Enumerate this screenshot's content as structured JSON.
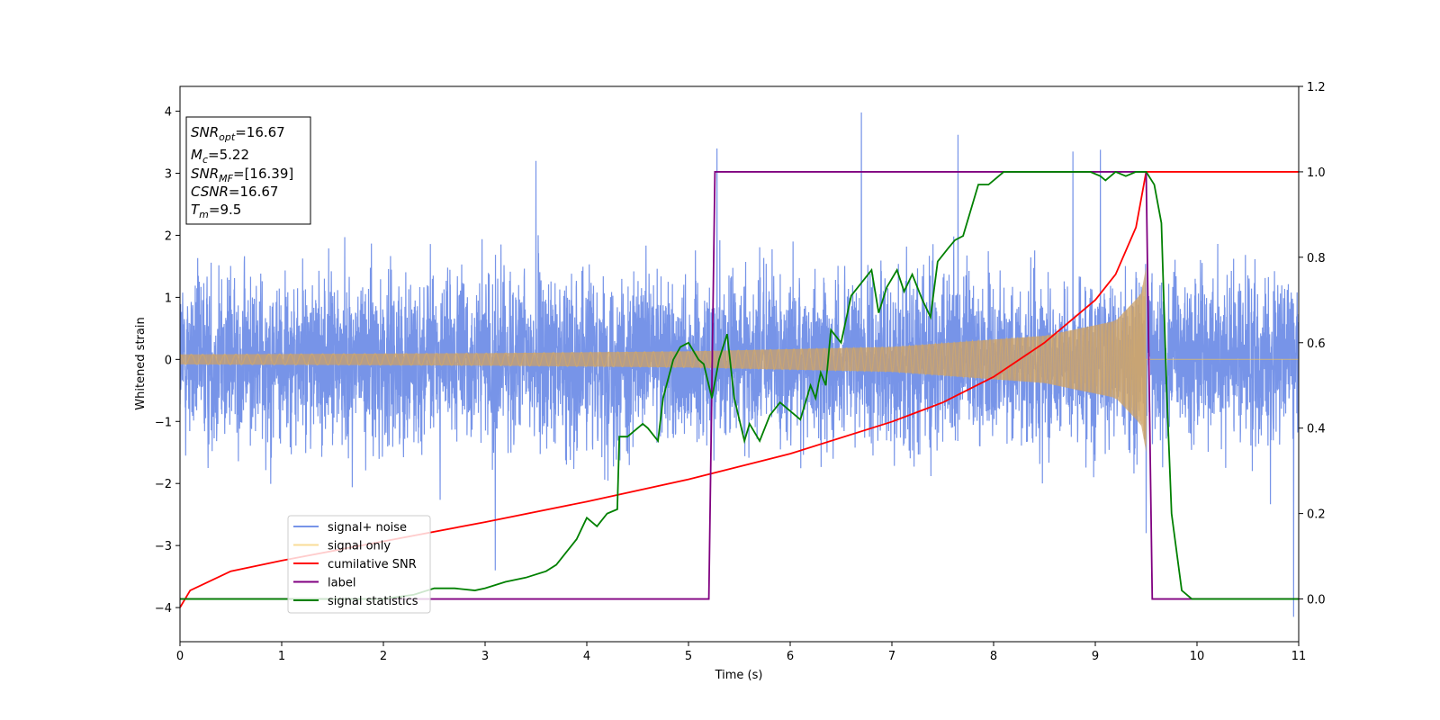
{
  "chart_data": {
    "type": "line",
    "xlabel": "Time (s)",
    "ylabel": "Whitened strain",
    "xlim": [
      0,
      11
    ],
    "ylim": [
      -4.55,
      4.4
    ],
    "y2lim": [
      -0.1,
      1.2
    ],
    "x_ticks": [
      0,
      1,
      2,
      3,
      4,
      5,
      6,
      7,
      8,
      9,
      10,
      11
    ],
    "y_ticks": [
      -4,
      -3,
      -2,
      -1,
      0,
      1,
      2,
      3,
      4
    ],
    "y2_ticks": [
      0.0,
      0.2,
      0.4,
      0.6,
      0.8,
      1.0,
      1.2
    ],
    "y2_tick_labels": [
      "0.0",
      "0.2",
      "0.4",
      "0.6",
      "0.8",
      "1.0",
      "1.2"
    ],
    "grid": false,
    "legend_position": "bottom-left",
    "info_box": {
      "lines": [
        {
          "var": "SNR",
          "sub": "opt",
          "value": "=16.67"
        },
        {
          "var": "M",
          "sub": "c",
          "value": "=5.22"
        },
        {
          "var": "SNR",
          "sub": "MF",
          "value": "=[16.39]"
        },
        {
          "var": "CSNR",
          "sub": "",
          "value": "=16.67"
        },
        {
          "var": "T",
          "sub": "m",
          "value": "=9.5"
        }
      ]
    },
    "series": [
      {
        "name": "signal+ noise",
        "axis": "left",
        "color": "#6b8be6",
        "kind": "noise",
        "noise_amplitude": 2.2,
        "spikes": [
          [
            5.28,
            3.4
          ],
          [
            6.7,
            3.98
          ],
          [
            7.65,
            3.62
          ],
          [
            8.78,
            3.35
          ],
          [
            9.05,
            3.38
          ],
          [
            3.1,
            -3.4
          ],
          [
            10.95,
            -4.15
          ],
          [
            3.5,
            3.2
          ],
          [
            9.5,
            -2.8
          ]
        ]
      },
      {
        "name": "signal only",
        "axis": "left",
        "color": "#f5c451",
        "kind": "chirp",
        "merger_time": 9.5,
        "envelope": [
          [
            0,
            0.08
          ],
          [
            3,
            0.1
          ],
          [
            5,
            0.13
          ],
          [
            7,
            0.2
          ],
          [
            8.5,
            0.38
          ],
          [
            9.2,
            0.62
          ],
          [
            9.45,
            1.05
          ],
          [
            9.5,
            1.5
          ]
        ]
      },
      {
        "name": "cumilative SNR",
        "axis": "right",
        "color": "#ff0000",
        "points": [
          [
            0,
            -0.02
          ],
          [
            0.1,
            0.02
          ],
          [
            0.5,
            0.065
          ],
          [
            1,
            0.09
          ],
          [
            2,
            0.135
          ],
          [
            3,
            0.18
          ],
          [
            4,
            0.228
          ],
          [
            5,
            0.28
          ],
          [
            6,
            0.34
          ],
          [
            7,
            0.415
          ],
          [
            7.5,
            0.46
          ],
          [
            8,
            0.52
          ],
          [
            8.5,
            0.6
          ],
          [
            9,
            0.7
          ],
          [
            9.2,
            0.76
          ],
          [
            9.4,
            0.87
          ],
          [
            9.5,
            1.0
          ],
          [
            11,
            1.0
          ]
        ]
      },
      {
        "name": "label",
        "axis": "right",
        "color": "#800080",
        "points": [
          [
            0,
            0.0
          ],
          [
            5.2,
            0.0
          ],
          [
            5.26,
            1.0
          ],
          [
            9.5,
            1.0
          ],
          [
            9.56,
            0.0
          ],
          [
            11,
            0.0
          ]
        ]
      },
      {
        "name": "signal statistics",
        "axis": "right",
        "color": "#008000",
        "points": [
          [
            0,
            0.0
          ],
          [
            0.5,
            0.0
          ],
          [
            1,
            0.0
          ],
          [
            2,
            0.0
          ],
          [
            2.3,
            0.01
          ],
          [
            2.5,
            0.025
          ],
          [
            2.7,
            0.025
          ],
          [
            2.9,
            0.02
          ],
          [
            3.0,
            0.025
          ],
          [
            3.2,
            0.04
          ],
          [
            3.4,
            0.05
          ],
          [
            3.6,
            0.065
          ],
          [
            3.7,
            0.08
          ],
          [
            3.8,
            0.11
          ],
          [
            3.9,
            0.14
          ],
          [
            4.0,
            0.19
          ],
          [
            4.1,
            0.17
          ],
          [
            4.2,
            0.2
          ],
          [
            4.3,
            0.21
          ],
          [
            4.32,
            0.38
          ],
          [
            4.4,
            0.38
          ],
          [
            4.55,
            0.41
          ],
          [
            4.6,
            0.4
          ],
          [
            4.7,
            0.37
          ],
          [
            4.75,
            0.47
          ],
          [
            4.85,
            0.56
          ],
          [
            4.92,
            0.59
          ],
          [
            5.0,
            0.6
          ],
          [
            5.1,
            0.56
          ],
          [
            5.15,
            0.55
          ],
          [
            5.23,
            0.47
          ],
          [
            5.3,
            0.56
          ],
          [
            5.38,
            0.62
          ],
          [
            5.45,
            0.47
          ],
          [
            5.55,
            0.37
          ],
          [
            5.6,
            0.41
          ],
          [
            5.7,
            0.37
          ],
          [
            5.8,
            0.43
          ],
          [
            5.9,
            0.46
          ],
          [
            6.0,
            0.44
          ],
          [
            6.1,
            0.42
          ],
          [
            6.15,
            0.46
          ],
          [
            6.2,
            0.5
          ],
          [
            6.25,
            0.47
          ],
          [
            6.3,
            0.53
          ],
          [
            6.35,
            0.5
          ],
          [
            6.4,
            0.63
          ],
          [
            6.5,
            0.6
          ],
          [
            6.6,
            0.71
          ],
          [
            6.7,
            0.74
          ],
          [
            6.8,
            0.77
          ],
          [
            6.87,
            0.67
          ],
          [
            6.95,
            0.73
          ],
          [
            7.05,
            0.77
          ],
          [
            7.12,
            0.72
          ],
          [
            7.2,
            0.76
          ],
          [
            7.3,
            0.7
          ],
          [
            7.38,
            0.66
          ],
          [
            7.45,
            0.79
          ],
          [
            7.55,
            0.82
          ],
          [
            7.62,
            0.84
          ],
          [
            7.7,
            0.85
          ],
          [
            7.8,
            0.93
          ],
          [
            7.85,
            0.97
          ],
          [
            7.95,
            0.97
          ],
          [
            8.0,
            0.98
          ],
          [
            8.1,
            1.0
          ],
          [
            8.3,
            1.0
          ],
          [
            8.6,
            1.0
          ],
          [
            8.8,
            1.0
          ],
          [
            8.95,
            1.0
          ],
          [
            9.05,
            0.99
          ],
          [
            9.1,
            0.98
          ],
          [
            9.2,
            1.0
          ],
          [
            9.3,
            0.99
          ],
          [
            9.4,
            1.0
          ],
          [
            9.5,
            1.0
          ],
          [
            9.58,
            0.97
          ],
          [
            9.65,
            0.88
          ],
          [
            9.7,
            0.5
          ],
          [
            9.75,
            0.2
          ],
          [
            9.85,
            0.02
          ],
          [
            9.95,
            0.0
          ],
          [
            10.5,
            0.0
          ],
          [
            11,
            0.0
          ]
        ]
      }
    ]
  }
}
